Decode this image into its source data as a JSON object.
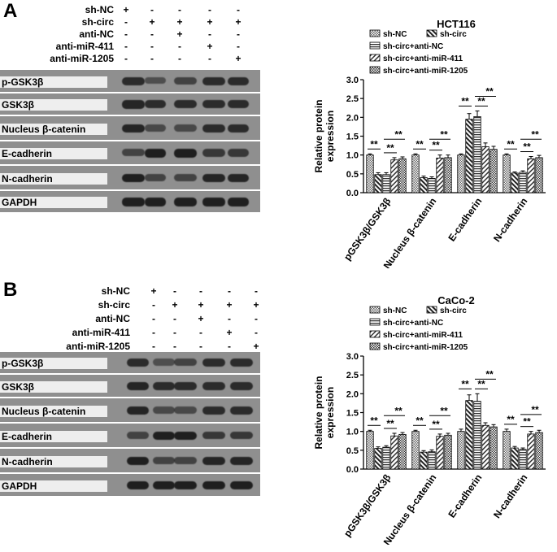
{
  "figure": {
    "panels": [
      {
        "id": "A",
        "treatments": [
          {
            "label": "sh-NC",
            "marks": [
              "+",
              "-",
              "-",
              "-",
              "-"
            ]
          },
          {
            "label": "sh-circ",
            "marks": [
              "-",
              "+",
              "+",
              "+",
              "+"
            ]
          },
          {
            "label": "anti-NC",
            "marks": [
              "-",
              "-",
              "+",
              "-",
              "-"
            ]
          },
          {
            "label": "anti-miR-411",
            "marks": [
              "-",
              "-",
              "-",
              "+",
              "-"
            ]
          },
          {
            "label": "anti-miR-1205",
            "marks": [
              "-",
              "-",
              "-",
              "-",
              "+"
            ]
          }
        ],
        "blots": [
          "p-GSK3β",
          "GSK3β",
          "Nucleus β-catenin",
          "E-cadherin",
          "N-cadherin",
          "GAPDH"
        ]
      },
      {
        "id": "B",
        "treatments": [
          {
            "label": "sh-NC",
            "marks": [
              "+",
              "-",
              "-",
              "-",
              "-"
            ]
          },
          {
            "label": "sh-circ",
            "marks": [
              "-",
              "+",
              "+",
              "+",
              "+"
            ]
          },
          {
            "label": "anti-NC",
            "marks": [
              "-",
              "-",
              "+",
              "-",
              "-"
            ]
          },
          {
            "label": "anti-miR-411",
            "marks": [
              "-",
              "-",
              "-",
              "+",
              "-"
            ]
          },
          {
            "label": "anti-miR-1205",
            "marks": [
              "-",
              "-",
              "-",
              "-",
              "+"
            ]
          }
        ],
        "blots": [
          "p-GSK3β",
          "GSK3β",
          "Nucleus β-catenin",
          "E-cadherin",
          "N-cadherin",
          "GAPDH"
        ]
      }
    ]
  },
  "chart_data": [
    {
      "type": "bar",
      "title": "HCT116",
      "ylabel": "Relative protein expression",
      "ylim": [
        0,
        3.0
      ],
      "yticks": [
        "0.0",
        "0.5",
        "1.0",
        "1.5",
        "2.0",
        "2.5",
        "3.0"
      ],
      "categories": [
        "pGSK3β/GSK3β",
        "Nucleus β-catenin",
        "E-cadherin",
        "N-cadherin"
      ],
      "series": [
        {
          "name": "sh-NC",
          "values": [
            1.0,
            1.0,
            1.0,
            1.0
          ],
          "errors": [
            0.03,
            0.03,
            0.03,
            0.03
          ]
        },
        {
          "name": "sh-circ",
          "values": [
            0.48,
            0.4,
            1.95,
            0.52
          ],
          "errors": [
            0.05,
            0.04,
            0.15,
            0.03
          ]
        },
        {
          "name": "sh-circ+anti-NC",
          "values": [
            0.48,
            0.38,
            2.02,
            0.54
          ],
          "errors": [
            0.05,
            0.04,
            0.15,
            0.04
          ]
        },
        {
          "name": "sh-circ+anti-miR-411",
          "values": [
            0.87,
            0.92,
            1.22,
            0.9
          ],
          "errors": [
            0.06,
            0.08,
            0.1,
            0.06
          ]
        },
        {
          "name": "sh-circ+anti-miR-1205",
          "values": [
            0.9,
            0.93,
            1.15,
            0.93
          ],
          "errors": [
            0.05,
            0.07,
            0.08,
            0.06
          ]
        }
      ],
      "annotations": "**",
      "legend": "top"
    },
    {
      "type": "bar",
      "title": "CaCo-2",
      "ylabel": "Relative protein expression",
      "ylim": [
        0,
        3.0
      ],
      "yticks": [
        "0.0",
        "0.5",
        "1.0",
        "1.5",
        "2.0",
        "2.5",
        "3.0"
      ],
      "categories": [
        "pGSK3β/GSK3β",
        "Nucleus β-catenin",
        "E-cadherin",
        "N-cadherin"
      ],
      "series": [
        {
          "name": "sh-NC",
          "values": [
            1.0,
            1.0,
            1.0,
            1.0
          ],
          "errors": [
            0.03,
            0.03,
            0.06,
            0.06
          ]
        },
        {
          "name": "sh-circ",
          "values": [
            0.55,
            0.45,
            1.82,
            0.56
          ],
          "errors": [
            0.04,
            0.04,
            0.15,
            0.04
          ]
        },
        {
          "name": "sh-circ+anti-NC",
          "values": [
            0.58,
            0.46,
            1.8,
            0.52
          ],
          "errors": [
            0.04,
            0.05,
            0.2,
            0.04
          ]
        },
        {
          "name": "sh-circ+anti-miR-411",
          "values": [
            0.88,
            0.87,
            1.16,
            0.93
          ],
          "errors": [
            0.07,
            0.06,
            0.07,
            0.07
          ]
        },
        {
          "name": "sh-circ+anti-miR-1205",
          "values": [
            0.92,
            0.9,
            1.12,
            0.97
          ],
          "errors": [
            0.05,
            0.05,
            0.06,
            0.06
          ]
        }
      ],
      "annotations": "**",
      "legend": "top"
    }
  ]
}
